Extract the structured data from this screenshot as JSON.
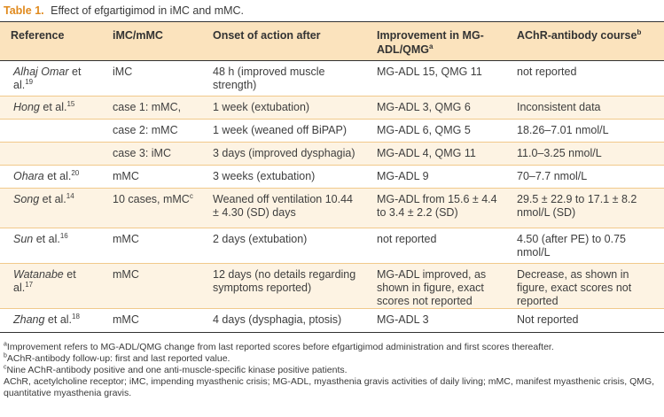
{
  "caption": {
    "label": "Table 1.",
    "title": "Effect of efgartigimod in iMC and mMC."
  },
  "header": {
    "reference": "Reference",
    "type": "iMC/mMC",
    "onset": "Onset of action after",
    "improvement": "Improvement in MG-ADL/QMG",
    "improvement_sup": "a",
    "achr": "AChR-antibody course",
    "achr_sup": "b"
  },
  "rows": [
    {
      "ref_name": "Alhaj Omar",
      "ref_suffix": " et al.",
      "ref_num": "19",
      "type": "iMC",
      "type_sup": "",
      "onset": "48 h (improved muscle strength)",
      "improvement": "MG-ADL 15, QMG 11",
      "achr": "not reported"
    },
    {
      "ref_name": "Hong",
      "ref_suffix": " et al.",
      "ref_num": "15",
      "type": "case 1: mMC,",
      "type_sup": "",
      "onset": "1 week (extubation)",
      "improvement": "MG-ADL 3, QMG 6",
      "achr": "Inconsistent data"
    },
    {
      "ref_name": "",
      "ref_suffix": "",
      "ref_num": "",
      "type": "case 2: mMC",
      "type_sup": "",
      "onset": "1 week (weaned off BiPAP)",
      "improvement": "MG-ADL 6, QMG 5",
      "achr": "18.26–7.01 nmol/L"
    },
    {
      "ref_name": "",
      "ref_suffix": "",
      "ref_num": "",
      "type": "case 3: iMC",
      "type_sup": "",
      "onset": "3 days (improved dysphagia)",
      "improvement": "MG-ADL 4, QMG 11",
      "achr": "11.0–3.25 nmol/L"
    },
    {
      "ref_name": "Ohara",
      "ref_suffix": " et al.",
      "ref_num": "20",
      "type": "mMC",
      "type_sup": "",
      "onset": "3 weeks (extubation)",
      "improvement": "MG-ADL 9",
      "achr": "70–7.7 nmol/L"
    },
    {
      "ref_name": "Song",
      "ref_suffix": " et al.",
      "ref_num": "14",
      "type": "10 cases, mMC",
      "type_sup": "c",
      "onset": "Weaned off ventilation 10.44 ± 4.30 (SD) days",
      "improvement": "MG-ADL from 15.6 ± 4.4 to 3.4 ± 2.2 (SD)",
      "achr": "29.5 ± 22.9 to 17.1 ± 8.2 nmol/L (SD)"
    },
    {
      "ref_name": "Sun",
      "ref_suffix": " et al.",
      "ref_num": "16",
      "type": "mMC",
      "type_sup": "",
      "onset": "2 days (extubation)",
      "improvement": "not reported",
      "achr": "4.50 (after PE) to 0.75 nmol/L"
    },
    {
      "ref_name": "Watanabe",
      "ref_suffix": " et al.",
      "ref_num": "17",
      "type": "mMC",
      "type_sup": "",
      "onset": "12 days (no details regarding symptoms reported)",
      "improvement": "MG-ADL improved, as shown in figure, exact scores not reported",
      "achr": "Decrease, as shown in figure, exact scores not reported"
    },
    {
      "ref_name": "Zhang",
      "ref_suffix": " et al.",
      "ref_num": "18",
      "type": "mMC",
      "type_sup": "",
      "onset": "4 days (dysphagia, ptosis)",
      "improvement": "MG-ADL 3",
      "achr": "Not reported"
    }
  ],
  "footnotes": [
    {
      "mark": "a",
      "text": "Improvement refers to MG-ADL/QMG change from last reported scores before efgartigimod administration and first scores thereafter."
    },
    {
      "mark": "b",
      "text": "AChR-antibody follow-up: first and last reported value."
    },
    {
      "mark": "c",
      "text": "Nine AChR-antibody positive and one anti-muscle-specific kinase positive patients."
    },
    {
      "mark": "",
      "text": "AChR, acetylcholine receptor; iMC, impending myasthenic crisis; MG-ADL, myasthenia gravis activities of daily living; mMC, manifest myasthenic crisis, QMG, quantitative myasthenia gravis."
    }
  ]
}
